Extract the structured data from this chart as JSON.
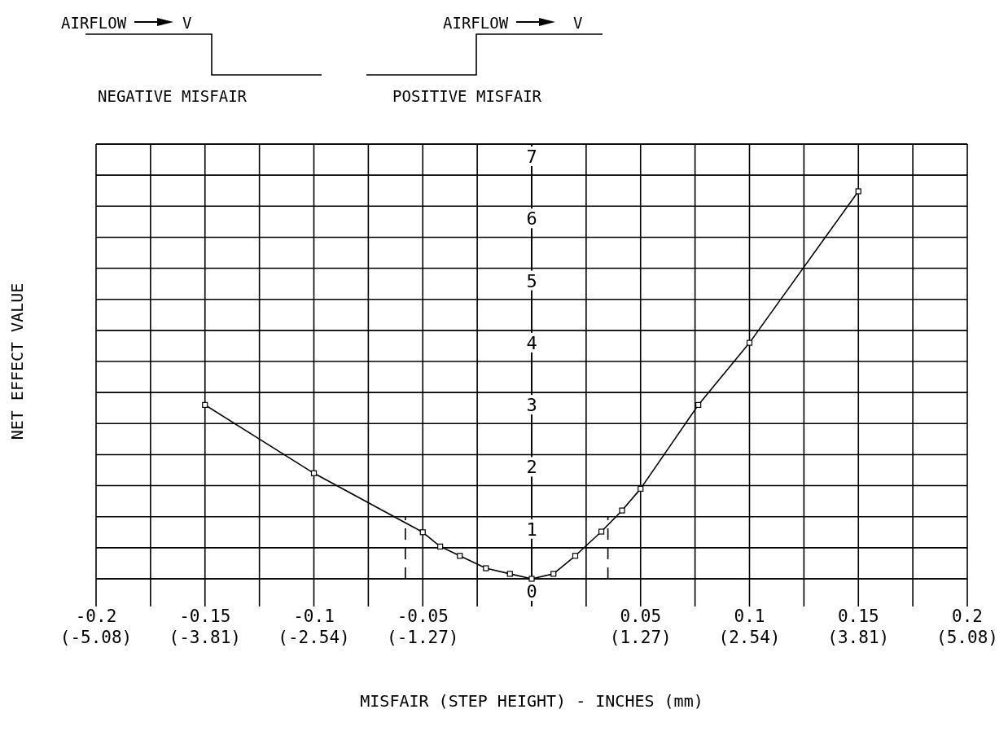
{
  "chart_data": {
    "type": "line",
    "xlabel": "MISFAIR (STEP HEIGHT) - INCHES (mm)",
    "ylabel": "NET EFFECT VALUE",
    "annotations": [
      "AIRFLOW",
      "V",
      "NEGATIVE MISFAIR",
      "AIRFLOW",
      "V",
      "POSITIVE MISFAIR"
    ],
    "xlim": [
      -0.2,
      0.2
    ],
    "ylim": [
      0,
      7
    ],
    "xticks": [
      -0.2,
      {
        "value": -0.175,
        "label": null
      },
      -0.15,
      {
        "value": -0.125,
        "label": null
      },
      -0.1,
      {
        "value": -0.075,
        "label": null
      },
      -0.05,
      {
        "value": -0.025,
        "label": null
      },
      {
        "value": 0,
        "label": null
      },
      {
        "value": 0.025,
        "label": null
      },
      0.05,
      {
        "value": 0.075,
        "label": null
      },
      0.1,
      {
        "value": 0.125,
        "label": null
      },
      0.15,
      {
        "value": 0.175,
        "label": null
      },
      0.2
    ],
    "x2lim": [
      -5.08,
      5.08
    ],
    "x2ticks": [
      {
        "value": -5.08,
        "label": "(-5.08)"
      },
      {
        "value": -3.81,
        "label": "(-3.81)"
      },
      {
        "value": -2.54,
        "label": "(-2.54)"
      },
      {
        "value": -1.27,
        "label": "(-1.27)"
      },
      {
        "value": 1.27,
        "label": "(1.27)"
      },
      {
        "value": 2.54,
        "label": "(2.54)"
      },
      {
        "value": 5.08,
        "label": "(5.08)"
      },
      {
        "value": 3.81,
        "label": "(3.81)"
      }
    ],
    "yticks": [
      0,
      {
        "value": 0.5,
        "label": null
      },
      1,
      {
        "value": 1.5,
        "label": null
      },
      2,
      {
        "value": 2.5,
        "label": null
      },
      3,
      {
        "value": 3.5,
        "label": null
      },
      4,
      {
        "value": 4.5,
        "label": null
      },
      5,
      {
        "value": 5.5,
        "label": null
      },
      6,
      {
        "value": 6.5,
        "label": null
      },
      7
    ],
    "grid": true,
    "marker": "square",
    "series": [
      {
        "color": "#000000",
        "x": [
          -0.15,
          -0.1,
          -0.05,
          -0.042,
          -0.033,
          -0.021,
          -0.01,
          0,
          0.01,
          0.02,
          0.032,
          0.0415,
          0.05,
          0.0765,
          0.1,
          0.15
        ],
        "values": [
          2.8,
          1.7,
          0.75,
          0.52,
          0.37,
          0.17,
          0.08,
          0,
          0.08,
          0.37,
          0.76,
          1.1,
          1.45,
          2.8,
          3.8,
          6.24
        ]
      },
      {
        "color": "#000000",
        "line_style": "dashed",
        "marker": "none",
        "x": [
          -0.058,
          -0.058
        ],
        "values": [
          0,
          1
        ]
      },
      {
        "color": "#000000",
        "line_style": "dashed",
        "marker": "none",
        "x": [
          0.035,
          0.035
        ],
        "values": [
          0,
          1
        ]
      }
    ]
  }
}
